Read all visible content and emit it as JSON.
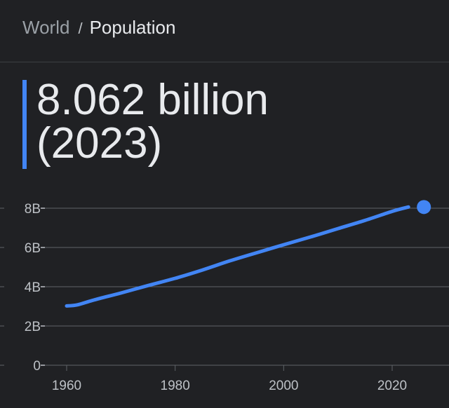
{
  "breadcrumb": {
    "parent": "World",
    "separator": "/",
    "current": "Population"
  },
  "headline": {
    "value": "8.062 billion",
    "year": "(2023)"
  },
  "colors": {
    "accent": "#4285f4",
    "background": "#202124",
    "grid": "#5f6368"
  },
  "chart_data": {
    "type": "line",
    "title": "",
    "xlabel": "",
    "ylabel": "",
    "xlim": [
      1955,
      2031
    ],
    "ylim": [
      0,
      8
    ],
    "grid": true,
    "y_ticks": [
      {
        "value": 0,
        "label": "0"
      },
      {
        "value": 2,
        "label": "2B"
      },
      {
        "value": 4,
        "label": "4B"
      },
      {
        "value": 6,
        "label": "6B"
      },
      {
        "value": 8,
        "label": "8B"
      }
    ],
    "x_ticks": [
      {
        "value": 1960,
        "label": "1960"
      },
      {
        "value": 1980,
        "label": "1980"
      },
      {
        "value": 2000,
        "label": "2000"
      },
      {
        "value": 2020,
        "label": "2020"
      }
    ],
    "series": [
      {
        "x": [
          1960,
          1962,
          1965,
          1970,
          1975,
          1980,
          1985,
          1990,
          1995,
          2000,
          2005,
          2010,
          2015,
          2020,
          2023
        ],
        "y": [
          3.02,
          3.08,
          3.32,
          3.68,
          4.06,
          4.43,
          4.85,
          5.31,
          5.73,
          6.14,
          6.54,
          6.96,
          7.38,
          7.84,
          8.06
        ],
        "highlight_last": true
      }
    ]
  }
}
